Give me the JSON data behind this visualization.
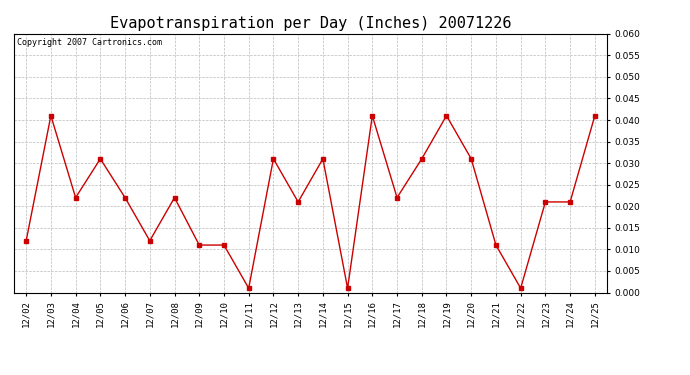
{
  "title": "Evapotranspiration per Day (Inches) 20071226",
  "copyright_text": "Copyright 2007 Cartronics.com",
  "dates": [
    "12/02",
    "12/03",
    "12/04",
    "12/05",
    "12/06",
    "12/07",
    "12/08",
    "12/09",
    "12/10",
    "12/11",
    "12/12",
    "12/13",
    "12/14",
    "12/15",
    "12/16",
    "12/17",
    "12/18",
    "12/19",
    "12/20",
    "12/21",
    "12/22",
    "12/23",
    "12/24",
    "12/25"
  ],
  "values": [
    0.012,
    0.041,
    0.022,
    0.031,
    0.022,
    0.012,
    0.022,
    0.011,
    0.011,
    0.001,
    0.031,
    0.021,
    0.031,
    0.001,
    0.041,
    0.022,
    0.031,
    0.041,
    0.031,
    0.011,
    0.001,
    0.021,
    0.021,
    0.041
  ],
  "ylim": [
    0.0,
    0.06
  ],
  "ytick_step": 0.005,
  "line_color": "#cc0000",
  "marker": "s",
  "marker_size": 2.5,
  "background_color": "#ffffff",
  "grid_color": "#bbbbbb",
  "title_fontsize": 11,
  "copyright_fontsize": 6,
  "tick_fontsize": 6.5
}
